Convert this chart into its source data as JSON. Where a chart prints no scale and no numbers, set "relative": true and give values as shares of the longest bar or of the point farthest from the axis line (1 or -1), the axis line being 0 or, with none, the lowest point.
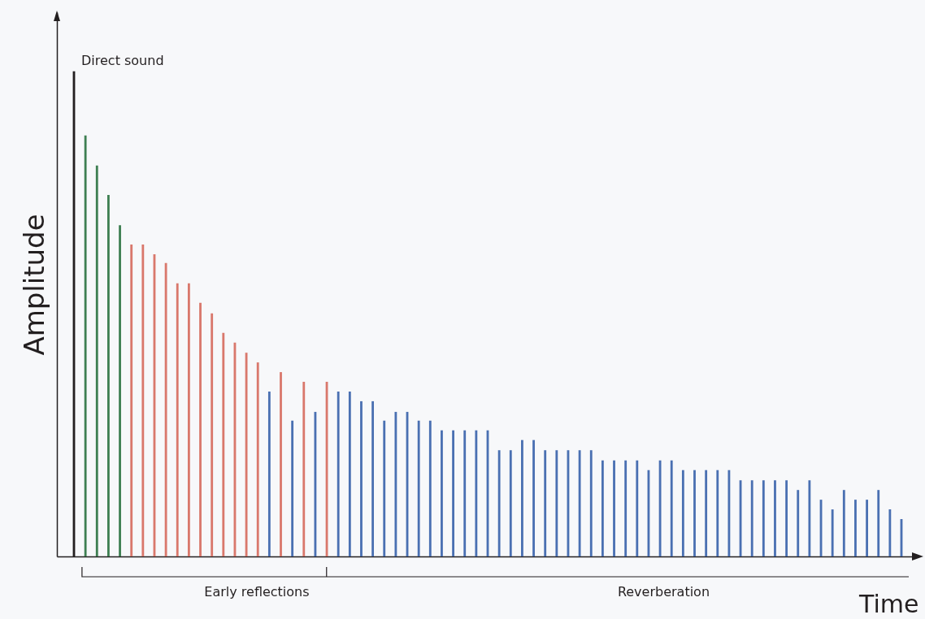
{
  "chart_data": {
    "type": "bar",
    "relative": true,
    "xlabel": "Time",
    "ylabel": "Amplitude",
    "annotations": [
      "Direct sound",
      "Early reflections",
      "Reverberation"
    ],
    "categories": [
      null,
      null,
      null,
      null,
      null,
      null,
      null,
      null,
      null,
      null,
      null,
      null,
      null,
      null,
      null,
      null,
      null,
      null,
      null,
      null,
      null,
      null,
      null,
      null,
      null,
      null,
      null,
      null,
      null,
      null,
      null,
      null,
      null,
      null,
      null,
      null,
      null,
      null,
      null,
      null,
      null,
      null,
      null,
      null,
      null,
      null,
      null,
      null,
      null,
      null,
      null,
      null,
      null,
      null,
      null,
      null,
      null,
      null,
      null,
      null,
      null,
      null,
      null,
      null,
      null,
      null,
      null,
      null,
      null,
      null,
      null,
      null,
      null
    ],
    "values": [
      1,
      0.868,
      0.806,
      0.745,
      0.683,
      0.643,
      0.643,
      0.623,
      0.605,
      0.563,
      0.563,
      0.523,
      0.501,
      0.461,
      0.441,
      0.42,
      0.4,
      0.34,
      0.38,
      0.28,
      0.36,
      0.298,
      0.36,
      0.34,
      0.34,
      0.32,
      0.32,
      0.28,
      0.298,
      0.298,
      0.28,
      0.28,
      0.26,
      0.26,
      0.26,
      0.26,
      0.26,
      0.219,
      0.219,
      0.24,
      0.24,
      0.219,
      0.219,
      0.219,
      0.219,
      0.219,
      0.198,
      0.198,
      0.198,
      0.198,
      0.178,
      0.198,
      0.198,
      0.178,
      0.178,
      0.178,
      0.178,
      0.178,
      0.157,
      0.157,
      0.157,
      0.157,
      0.157,
      0.137,
      0.157,
      0.117,
      0.097,
      0.137,
      0.117,
      0.117,
      0.137,
      0.097,
      0.077
    ],
    "colors": [
      "#231f20",
      "#3e7f52",
      "#3e7f52",
      "#3e7f52",
      "#3e7f52",
      "#d9786c",
      "#d9786c",
      "#d9786c",
      "#d9786c",
      "#d9786c",
      "#d9786c",
      "#d9786c",
      "#d9786c",
      "#d9786c",
      "#d9786c",
      "#d9786c",
      "#d9786c",
      "#4a70b2",
      "#d9786c",
      "#4a70b2",
      "#d9786c",
      "#4a70b2",
      "#d9786c",
      "#4a70b2",
      "#4a70b2",
      "#4a70b2",
      "#4a70b2",
      "#4a70b2",
      "#4a70b2",
      "#4a70b2",
      "#4a70b2",
      "#4a70b2",
      "#4a70b2",
      "#4a70b2",
      "#4a70b2",
      "#4a70b2",
      "#4a70b2",
      "#4a70b2",
      "#4a70b2",
      "#4a70b2",
      "#4a70b2",
      "#4a70b2",
      "#4a70b2",
      "#4a70b2",
      "#4a70b2",
      "#4a70b2",
      "#4a70b2",
      "#4a70b2",
      "#4a70b2",
      "#4a70b2",
      "#4a70b2",
      "#4a70b2",
      "#4a70b2",
      "#4a70b2",
      "#4a70b2",
      "#4a70b2",
      "#4a70b2",
      "#4a70b2",
      "#4a70b2",
      "#4a70b2",
      "#4a70b2",
      "#4a70b2",
      "#4a70b2",
      "#4a70b2",
      "#4a70b2",
      "#4a70b2",
      "#4a70b2",
      "#4a70b2",
      "#4a70b2",
      "#4a70b2",
      "#4a70b2",
      "#4a70b2",
      "#4a70b2"
    ]
  }
}
